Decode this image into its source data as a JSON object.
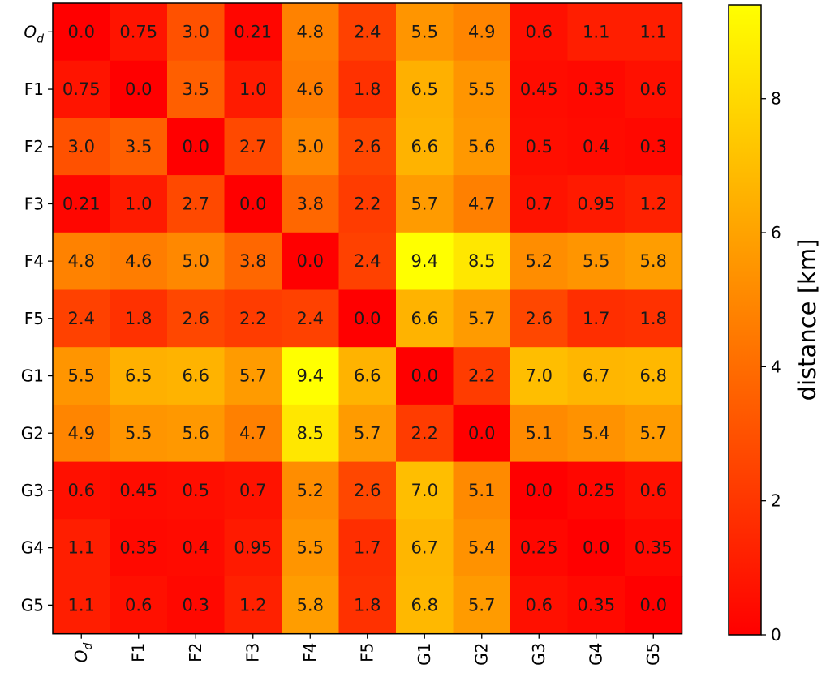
{
  "chart_data": {
    "type": "heatmap",
    "row_labels": [
      "O_d",
      "F1",
      "F2",
      "F3",
      "F4",
      "F5",
      "G1",
      "G2",
      "G3",
      "G4",
      "G5"
    ],
    "col_labels": [
      "O_d",
      "F1",
      "F2",
      "F3",
      "F4",
      "F5",
      "G1",
      "G2",
      "G3",
      "G4",
      "G5"
    ],
    "values": [
      [
        0.0,
        0.75,
        3.0,
        0.21,
        4.8,
        2.4,
        5.5,
        4.9,
        0.6,
        1.1,
        1.1
      ],
      [
        0.75,
        0.0,
        3.5,
        1.0,
        4.6,
        1.8,
        6.5,
        5.5,
        0.45,
        0.35,
        0.6
      ],
      [
        3.0,
        3.5,
        0.0,
        2.7,
        5.0,
        2.6,
        6.6,
        5.6,
        0.5,
        0.4,
        0.3
      ],
      [
        0.21,
        1.0,
        2.7,
        0.0,
        3.8,
        2.2,
        5.7,
        4.7,
        0.7,
        0.95,
        1.2
      ],
      [
        4.8,
        4.6,
        5.0,
        3.8,
        0.0,
        2.4,
        9.4,
        8.5,
        5.2,
        5.5,
        5.8
      ],
      [
        2.4,
        1.8,
        2.6,
        2.2,
        2.4,
        0.0,
        6.6,
        5.7,
        2.6,
        1.7,
        1.8
      ],
      [
        5.5,
        6.5,
        6.6,
        5.7,
        9.4,
        6.6,
        0.0,
        2.2,
        7.0,
        6.7,
        6.8
      ],
      [
        4.9,
        5.5,
        5.6,
        4.7,
        8.5,
        5.7,
        2.2,
        0.0,
        5.1,
        5.4,
        5.7
      ],
      [
        0.6,
        0.45,
        0.5,
        0.7,
        5.2,
        2.6,
        7.0,
        5.1,
        0.0,
        0.25,
        0.6
      ],
      [
        1.1,
        0.35,
        0.4,
        0.95,
        5.5,
        1.7,
        6.7,
        5.4,
        0.25,
        0.0,
        0.35
      ],
      [
        1.1,
        0.6,
        0.3,
        1.2,
        5.8,
        1.8,
        6.8,
        5.7,
        0.6,
        0.35,
        0.0
      ]
    ],
    "value_labels": [
      [
        "0.0",
        "0.75",
        "3.0",
        "0.21",
        "4.8",
        "2.4",
        "5.5",
        "4.9",
        "0.6",
        "1.1",
        "1.1"
      ],
      [
        "0.75",
        "0.0",
        "3.5",
        "1.0",
        "4.6",
        "1.8",
        "6.5",
        "5.5",
        "0.45",
        "0.35",
        "0.6"
      ],
      [
        "3.0",
        "3.5",
        "0.0",
        "2.7",
        "5.0",
        "2.6",
        "6.6",
        "5.6",
        "0.5",
        "0.4",
        "0.3"
      ],
      [
        "0.21",
        "1.0",
        "2.7",
        "0.0",
        "3.8",
        "2.2",
        "5.7",
        "4.7",
        "0.7",
        "0.95",
        "1.2"
      ],
      [
        "4.8",
        "4.6",
        "5.0",
        "3.8",
        "0.0",
        "2.4",
        "9.4",
        "8.5",
        "5.2",
        "5.5",
        "5.8"
      ],
      [
        "2.4",
        "1.8",
        "2.6",
        "2.2",
        "2.4",
        "0.0",
        "6.6",
        "5.7",
        "2.6",
        "1.7",
        "1.8"
      ],
      [
        "5.5",
        "6.5",
        "6.6",
        "5.7",
        "9.4",
        "6.6",
        "0.0",
        "2.2",
        "7.0",
        "6.7",
        "6.8"
      ],
      [
        "4.9",
        "5.5",
        "5.6",
        "4.7",
        "8.5",
        "5.7",
        "2.2",
        "0.0",
        "5.1",
        "5.4",
        "5.7"
      ],
      [
        "0.6",
        "0.45",
        "0.5",
        "0.7",
        "5.2",
        "2.6",
        "7.0",
        "5.1",
        "0.0",
        "0.25",
        "0.6"
      ],
      [
        "1.1",
        "0.35",
        "0.4",
        "0.95",
        "5.5",
        "1.7",
        "6.7",
        "5.4",
        "0.25",
        "0.0",
        "0.35"
      ],
      [
        "1.1",
        "0.6",
        "0.3",
        "1.2",
        "5.8",
        "1.8",
        "6.8",
        "5.7",
        "0.6",
        "0.35",
        "0.0"
      ]
    ],
    "colormap": "autumn",
    "colormap_stops": [
      "#ff0000",
      "#ffff00"
    ],
    "value_range": [
      0,
      9.4
    ],
    "colorbar": {
      "label": "distance [km]",
      "ticks": [
        0,
        2,
        4,
        6,
        8
      ],
      "tick_labels": [
        "0",
        "2",
        "4",
        "6",
        "8"
      ]
    },
    "title": "",
    "xlabel": "",
    "ylabel": ""
  }
}
